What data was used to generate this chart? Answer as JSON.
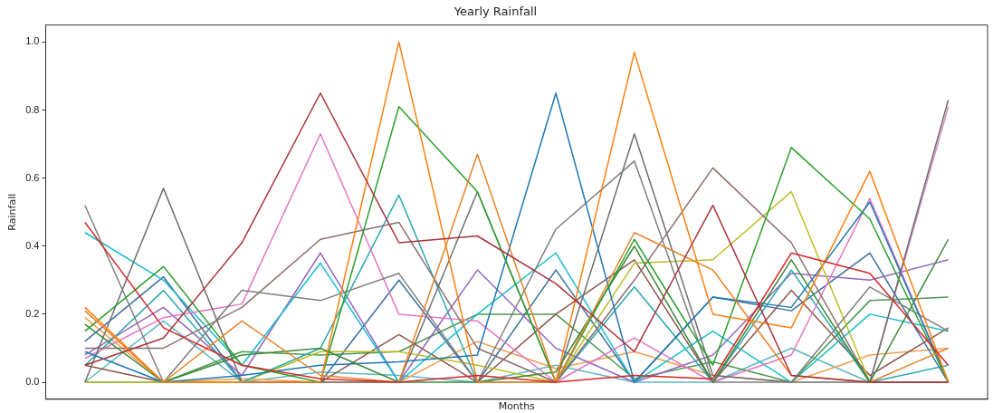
{
  "chart_data": {
    "type": "line",
    "title": "Yearly Rainfall",
    "xlabel": "Months",
    "ylabel": "Rainfall",
    "categories": [
      null,
      null,
      null,
      null,
      null,
      null,
      null,
      null,
      null,
      null,
      null,
      null
    ],
    "ylim": [
      -0.05,
      1.05
    ],
    "yticks": [
      {
        "value": 0,
        "label": "0.0"
      },
      {
        "value": 0.2,
        "label": "0.2"
      },
      {
        "value": 0.4,
        "label": "0.4"
      },
      {
        "value": 0.6,
        "label": "0.6"
      },
      {
        "value": 0.8,
        "label": "0.8"
      },
      {
        "value": 1,
        "label": "1.0"
      }
    ],
    "grid": false,
    "legend": false,
    "marker": "none",
    "line_style": "solid",
    "tick_labels": "y",
    "series": [
      {
        "color": "#d62728",
        "values": [
          0.47,
          0.16,
          0.05,
          0.01,
          0.0,
          0.02,
          0.0,
          0.02,
          0.01,
          0.38,
          0.32,
          0.05
        ]
      },
      {
        "color": "#a8323a",
        "values": [
          0.05,
          0.13,
          0.41,
          0.85,
          0.41,
          0.43,
          0.29,
          0.09,
          0.52,
          0.02,
          0.0,
          0.0
        ]
      },
      {
        "color": "#ff7f0e",
        "values": [
          0.22,
          0.0,
          0.0,
          0.0,
          1.0,
          0.0,
          0.0,
          0.97,
          0.2,
          0.16,
          0.62,
          0.0
        ]
      },
      {
        "color": "#e8822a",
        "values": [
          0.21,
          0.0,
          0.18,
          0.02,
          0.0,
          0.67,
          0.0,
          0.44,
          0.33,
          0.02,
          0.0,
          0.1
        ]
      },
      {
        "color": "#2ca02c",
        "values": [
          0.15,
          0.34,
          0.05,
          0.0,
          0.81,
          0.56,
          0.0,
          0.42,
          0.05,
          0.69,
          0.48,
          0.0
        ]
      },
      {
        "color": "#3a8a3a",
        "values": [
          0.17,
          0.0,
          0.08,
          0.1,
          0.0,
          0.0,
          0.03,
          0.4,
          0.0,
          0.36,
          0.0,
          0.42
        ]
      },
      {
        "color": "#1f77b4",
        "values": [
          0.09,
          0.0,
          0.02,
          0.05,
          0.06,
          0.08,
          0.85,
          0.0,
          0.25,
          0.22,
          0.53,
          0.0
        ]
      },
      {
        "color": "#7f7f7f",
        "values": [
          0.52,
          0.0,
          0.27,
          0.24,
          0.32,
          0.0,
          0.45,
          0.65,
          0.0,
          0.0,
          0.28,
          0.15
        ]
      },
      {
        "color": "#6e6e6e",
        "values": [
          0.0,
          0.57,
          0.0,
          0.0,
          0.0,
          0.56,
          0.0,
          0.73,
          0.02,
          0.0,
          0.0,
          0.83
        ]
      },
      {
        "color": "#8c6d6d",
        "values": [
          0.1,
          0.1,
          0.22,
          0.42,
          0.47,
          0.1,
          0.0,
          0.3,
          0.63,
          0.41,
          0.0,
          0.0
        ]
      },
      {
        "color": "#e377c2",
        "values": [
          0.07,
          0.19,
          0.23,
          0.73,
          0.2,
          0.18,
          0.0,
          0.13,
          0.0,
          0.08,
          0.54,
          0.0
        ]
      },
      {
        "color": "#d48fc0",
        "values": [
          null,
          null,
          null,
          null,
          null,
          null,
          null,
          null,
          null,
          null,
          0.0,
          0.81
        ]
      },
      {
        "color": "#17becf",
        "values": [
          0.44,
          0.3,
          0.05,
          0.35,
          0.0,
          0.2,
          0.38,
          0.0,
          0.15,
          0.0,
          0.2,
          0.15
        ]
      },
      {
        "color": "#2aa7b0",
        "values": [
          0.05,
          0.27,
          0.0,
          0.1,
          0.55,
          0.0,
          0.0,
          0.28,
          0.0,
          0.33,
          0.0,
          0.05
        ]
      },
      {
        "color": "#bcbd22",
        "values": [
          0.0,
          0.0,
          0.0,
          0.09,
          0.09,
          0.05,
          0.0,
          0.35,
          0.36,
          0.56,
          0.0,
          0.0
        ]
      },
      {
        "color": "#9467bd",
        "values": [
          0.08,
          0.22,
          0.02,
          0.38,
          0.0,
          0.33,
          0.1,
          0.0,
          0.08,
          0.32,
          0.3,
          0.36
        ]
      },
      {
        "color": "#8c564b",
        "values": [
          0.05,
          0.0,
          0.0,
          0.0,
          0.14,
          0.0,
          0.2,
          0.36,
          0.0,
          0.27,
          0.02,
          0.16
        ]
      },
      {
        "color": "#3b6fa0",
        "values": [
          0.12,
          0.31,
          0.0,
          0.0,
          0.3,
          0.0,
          0.33,
          0.0,
          0.25,
          0.21,
          0.38,
          0.0
        ]
      },
      {
        "color": "#4c9a4c",
        "values": [
          0.0,
          0.0,
          0.09,
          0.08,
          0.09,
          0.2,
          0.2,
          0.01,
          0.06,
          0.0,
          0.24,
          0.25
        ]
      },
      {
        "color": "#f0a050",
        "values": [
          0.19,
          0.0,
          0.01,
          0.0,
          0.0,
          0.12,
          0.04,
          0.09,
          0.02,
          0.0,
          0.08,
          0.1
        ]
      },
      {
        "color": "#5fb8c0",
        "values": [
          0.0,
          0.18,
          0.0,
          0.03,
          0.02,
          0.0,
          0.05,
          0.0,
          0.0,
          0.1,
          0.0,
          0.0
        ]
      }
    ]
  }
}
